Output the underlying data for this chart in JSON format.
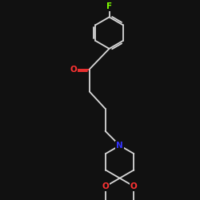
{
  "background_color": "#111111",
  "bond_color": "#d8d8d8",
  "atom_colors": {
    "F": "#7fff00",
    "O": "#ff3333",
    "N": "#3333ff"
  },
  "bond_lw": 1.3,
  "figsize": [
    2.5,
    2.5
  ],
  "dpi": 100,
  "xlim": [
    -2.5,
    2.5
  ],
  "ylim": [
    -3.8,
    3.8
  ],
  "font_size": 7.5
}
